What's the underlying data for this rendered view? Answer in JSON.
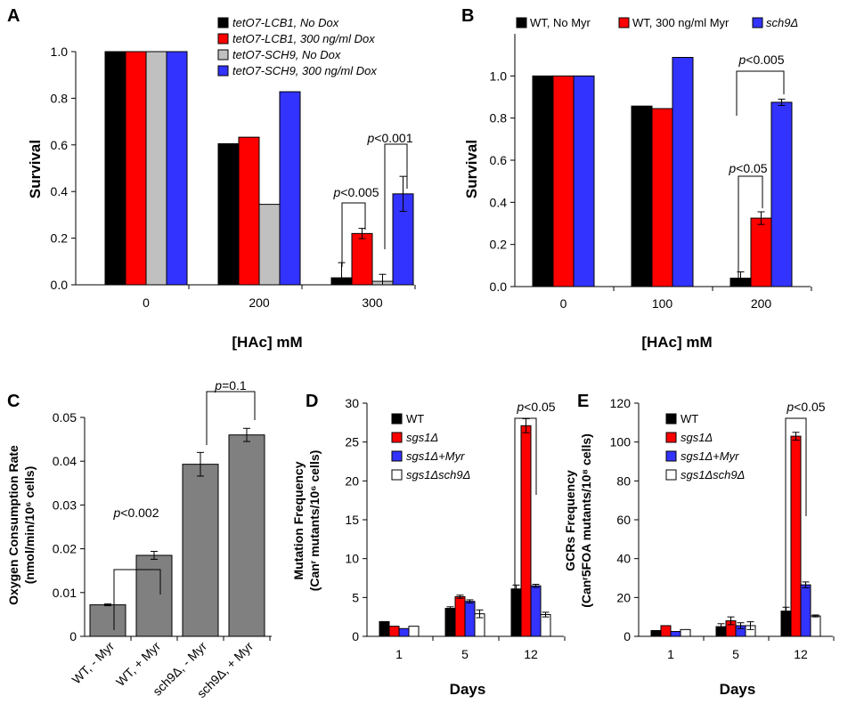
{
  "chart_data": [
    {
      "panel": "A",
      "type": "bar",
      "ylabel": "Survival",
      "xlabel": "[HAc] mM",
      "categories": [
        "0",
        "200",
        "300"
      ],
      "ylim": [
        0,
        1.0
      ],
      "yticks": [
        "0.0",
        "0.2",
        "0.4",
        "0.6",
        "0.8",
        "1.0"
      ],
      "legend_position": "top-center",
      "series": [
        {
          "name": "tetO7-LCB1, No Dox",
          "color": "#000000",
          "values": [
            1.0,
            0.605,
            0.03
          ],
          "errors": [
            0,
            0,
            0.065
          ]
        },
        {
          "name": "tetO7-LCB1, 300 ng/ml Dox",
          "color": "#ff0000",
          "values": [
            1.0,
            0.633,
            0.22
          ],
          "errors": [
            0,
            0,
            0.022
          ]
        },
        {
          "name": "tetO7-SCH9, No Dox",
          "color": "#c0c0c0",
          "values": [
            1.0,
            0.345,
            0.015
          ],
          "errors": [
            0,
            0,
            0.03
          ]
        },
        {
          "name": "tetO7-SCH9, 300 ng/ml  Dox",
          "color": "#3333ff",
          "values": [
            1.0,
            0.828,
            0.39
          ],
          "errors": [
            0,
            0,
            0.075
          ]
        }
      ],
      "annotations": [
        {
          "p": "p",
          "text": "<0.005"
        },
        {
          "p": "p",
          "text": "<0.001"
        }
      ]
    },
    {
      "panel": "B",
      "type": "bar",
      "ylabel": "Survival",
      "xlabel": "[HAc] mM",
      "categories": [
        "0",
        "100",
        "200"
      ],
      "ylim": [
        0,
        1.2
      ],
      "yticks": [
        "0.0",
        "0.2",
        "0.4",
        "0.6",
        "0.8",
        "1.0"
      ],
      "legend_position": "top",
      "series": [
        {
          "name": "WT, No Myr",
          "color": "#000000",
          "values": [
            1.0,
            0.857,
            0.04
          ],
          "errors": [
            0,
            0,
            0.03
          ]
        },
        {
          "name": "WT, 300 ng/ml Myr",
          "color": "#ff0000",
          "values": [
            1.0,
            0.845,
            0.325
          ],
          "errors": [
            0,
            0,
            0.03
          ]
        },
        {
          "name": "sch9Δ",
          "color": "#3333ff",
          "values": [
            1.0,
            1.088,
            0.875
          ],
          "errors": [
            0,
            0,
            0.015
          ]
        }
      ],
      "annotations": [
        {
          "p": "p",
          "text": "<0.05"
        },
        {
          "p": "p",
          "text": "<0.005"
        }
      ]
    },
    {
      "panel": "C",
      "type": "bar",
      "ylabel": "Oxygen Consumption Rate",
      "ylabel2": "(nmol/min/10⁶ cells)",
      "categories": [
        "WT, - Myr",
        "WT, + Myr",
        "sch9Δ, - Myr",
        "sch9Δ, + Myr"
      ],
      "ylim": [
        0,
        0.05
      ],
      "yticks": [
        "0",
        "0.01",
        "0.02",
        "0.03",
        "0.04",
        "0.05"
      ],
      "series": [
        {
          "name": "",
          "color": "#808080",
          "values": [
            0.0072,
            0.0185,
            0.0393,
            0.046
          ],
          "errors": [
            0.0002,
            0.0009,
            0.0027,
            0.0015
          ]
        }
      ],
      "annotations": [
        {
          "p": "p",
          "text": "<0.002"
        },
        {
          "p": "p",
          "text": "=0.1"
        }
      ]
    },
    {
      "panel": "D",
      "type": "bar",
      "ylabel": "Mutation Frequency",
      "ylabel2": "(Canʳ mutants/10⁶ cells)",
      "xlabel": "Days",
      "categories": [
        "1",
        "5",
        "12"
      ],
      "ylim": [
        0,
        30
      ],
      "yticks": [
        "0",
        "5",
        "10",
        "15",
        "20",
        "25",
        "30"
      ],
      "legend_position": "top-left",
      "series": [
        {
          "name": "WT",
          "color": "#000000",
          "values": [
            1.9,
            3.6,
            6.1
          ],
          "errors": [
            0,
            0.2,
            0.5
          ]
        },
        {
          "name": "sgs1Δ",
          "color": "#ff0000",
          "values": [
            1.3,
            5.1,
            27.1
          ],
          "errors": [
            0,
            0.2,
            0.9
          ]
        },
        {
          "name": "sgs1Δ+Myr",
          "color": "#3333ff",
          "values": [
            1.0,
            4.5,
            6.5
          ],
          "errors": [
            0,
            0.2,
            0.2
          ]
        },
        {
          "name": "sgs1Δsch9Δ",
          "color": "#ffffff",
          "values": [
            1.3,
            2.9,
            2.8
          ],
          "errors": [
            0,
            0.5,
            0.3
          ]
        }
      ],
      "annotations": [
        {
          "p": "p",
          "text": "<0.05"
        }
      ]
    },
    {
      "panel": "E",
      "type": "bar",
      "ylabel": "GCRs Frequency",
      "ylabel2": "(Canʳ5FOA mutants/10⁸ cells)",
      "xlabel": "Days",
      "categories": [
        "1",
        "5",
        "12"
      ],
      "ylim": [
        0,
        120
      ],
      "yticks": [
        "0",
        "20",
        "40",
        "60",
        "80",
        "100",
        "120"
      ],
      "legend_position": "top-left",
      "series": [
        {
          "name": "WT",
          "color": "#000000",
          "values": [
            3.0,
            5.0,
            13.0
          ],
          "errors": [
            0,
            1.5,
            2.0
          ]
        },
        {
          "name": "sgs1Δ",
          "color": "#ff0000",
          "values": [
            5.5,
            8.0,
            103.0
          ],
          "errors": [
            0,
            2.0,
            2.0
          ]
        },
        {
          "name": "sgs1Δ+Myr",
          "color": "#3333ff",
          "values": [
            2.5,
            5.5,
            26.5
          ],
          "errors": [
            0,
            1.5,
            1.5
          ]
        },
        {
          "name": "sgs1Δsch9Δ",
          "color": "#ffffff",
          "values": [
            3.5,
            5.5,
            10.5
          ],
          "errors": [
            0,
            2.0,
            0.5
          ]
        }
      ],
      "annotations": [
        {
          "p": "p",
          "text": "<0.05"
        }
      ]
    }
  ]
}
